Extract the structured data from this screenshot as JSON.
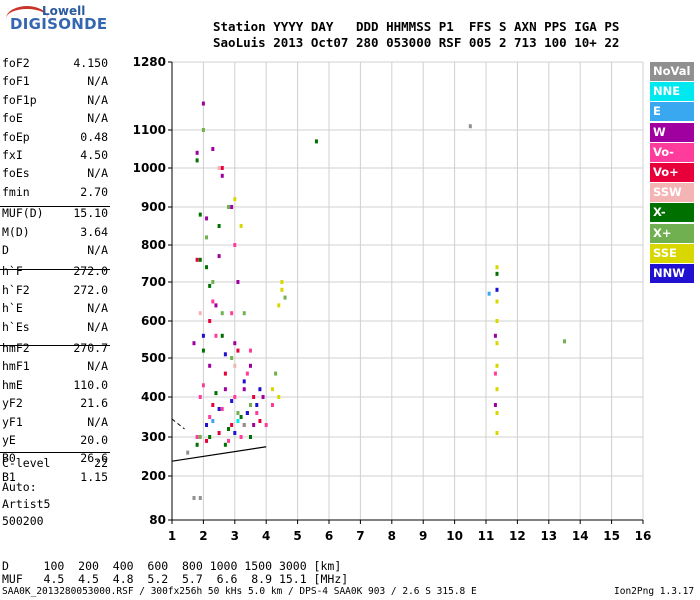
{
  "logo": {
    "top": "Lowell",
    "main": "DIGISONDE"
  },
  "header": {
    "line1": "Station YYYY DAY   DDD HHMMSS P1  FFS S AXN PPS IGA PS",
    "line2": "SaoLuis 2013 Oct07 280 053000 RSF 005 2 713 100 10+ 22"
  },
  "params": [
    {
      "name": "foF2",
      "value": "4.150"
    },
    {
      "name": "foF1",
      "value": "N/A"
    },
    {
      "name": "foF1p",
      "value": "N/A"
    },
    {
      "name": "foE",
      "value": "N/A"
    },
    {
      "name": "foEp",
      "value": "0.48"
    },
    {
      "name": "fxI",
      "value": "4.50"
    },
    {
      "name": "foEs",
      "value": "N/A"
    },
    {
      "name": "fmin",
      "value": "2.70"
    },
    {
      "name": "MUF(D)",
      "value": "15.10"
    },
    {
      "name": "M(D)",
      "value": "3.64"
    },
    {
      "name": "D",
      "value": "N/A"
    },
    {
      "name": "h`F",
      "value": "272.0"
    },
    {
      "name": "h`F2",
      "value": "272.0"
    },
    {
      "name": "h`E",
      "value": "N/A"
    },
    {
      "name": "h`Es",
      "value": "N/A"
    },
    {
      "name": "hmF2",
      "value": "270.7"
    },
    {
      "name": "hmF1",
      "value": "N/A"
    },
    {
      "name": "hmE",
      "value": "110.0"
    },
    {
      "name": "yF2",
      "value": "21.6"
    },
    {
      "name": "yF1",
      "value": "N/A"
    },
    {
      "name": "yE",
      "value": "20.0"
    },
    {
      "name": "B0",
      "value": "26.6"
    },
    {
      "name": "B1",
      "value": "1.15"
    }
  ],
  "clevel": {
    "name": "C-level",
    "value": "22"
  },
  "auto": [
    "Auto:",
    "Artist5",
    "500200"
  ],
  "legend": [
    {
      "label": "NoVal",
      "color": "#909090"
    },
    {
      "label": "NNE",
      "color": "#00e8f0"
    },
    {
      "label": "E",
      "color": "#3aa8f0"
    },
    {
      "label": "W",
      "color": "#a000a0"
    },
    {
      "label": "Vo-",
      "color": "#ff3c9c"
    },
    {
      "label": "Vo+",
      "color": "#e8003a"
    },
    {
      "label": "SSW",
      "color": "#f4b4b4"
    },
    {
      "label": "X-",
      "color": "#007000"
    },
    {
      "label": "X+",
      "color": "#70b050"
    },
    {
      "label": "SSE",
      "color": "#d8d800"
    },
    {
      "label": "NNW",
      "color": "#2010d0"
    }
  ],
  "muf_table": {
    "row1": "D     100  200  400  600  800 1000 1500 3000 [km]",
    "row2": "MUF   4.5  4.5  4.8  5.2  5.7  6.6  8.9 15.1 [MHz]"
  },
  "footer": {
    "left": "SAA0K_2013280053000.RSF / 300fx256h 50 kHs 5.0 km / DPS-4 SAA0K 903 / 2.6 S 315.8 E",
    "right": "Ion2Png 1.3.17"
  },
  "chart_data": {
    "type": "scatter",
    "x_ticks": [
      1,
      2,
      3,
      4,
      5,
      6,
      7,
      8,
      9,
      10,
      11,
      12,
      13,
      14,
      15,
      16
    ],
    "y_ticks": [
      80,
      200,
      300,
      400,
      500,
      600,
      700,
      800,
      900,
      1000,
      1100,
      1280
    ],
    "xlim": [
      1,
      16
    ],
    "ylim": [
      80,
      1280
    ],
    "grid": true,
    "legend_position": "right",
    "trace": [
      [
        1.0,
        238
      ],
      [
        4.0,
        275
      ]
    ],
    "trace2": [
      [
        1.0,
        345
      ],
      [
        1.4,
        320
      ]
    ],
    "series": [
      {
        "name": "X-",
        "points": [
          [
            1.9,
            760
          ],
          [
            2.2,
            690
          ],
          [
            2.6,
            560
          ],
          [
            1.8,
            280
          ],
          [
            2.2,
            300
          ],
          [
            2.8,
            320
          ],
          [
            3.2,
            350
          ],
          [
            2.4,
            410
          ],
          [
            2.0,
            520
          ],
          [
            2.5,
            850
          ],
          [
            1.9,
            880
          ],
          [
            2.7,
            280
          ],
          [
            3.5,
            300
          ],
          [
            11.35,
            722
          ],
          [
            5.6,
            1070
          ],
          [
            1.8,
            1020
          ],
          [
            2.1,
            740
          ]
        ]
      },
      {
        "name": "X+",
        "points": [
          [
            2.1,
            820
          ],
          [
            2.3,
            700
          ],
          [
            2.9,
            500
          ],
          [
            3.1,
            360
          ],
          [
            3.5,
            380
          ],
          [
            4.3,
            460
          ],
          [
            1.9,
            300
          ],
          [
            2.6,
            620
          ],
          [
            4.6,
            660
          ],
          [
            2.8,
            900
          ],
          [
            3.3,
            620
          ],
          [
            13.5,
            545
          ],
          [
            2.0,
            1100
          ]
        ]
      },
      {
        "name": "W",
        "points": [
          [
            2.0,
            1170
          ],
          [
            2.3,
            1050
          ],
          [
            2.6,
            980
          ],
          [
            2.9,
            900
          ],
          [
            2.4,
            640
          ],
          [
            3.0,
            540
          ],
          [
            3.3,
            420
          ],
          [
            3.6,
            330
          ],
          [
            1.7,
            540
          ],
          [
            2.2,
            480
          ],
          [
            2.7,
            420
          ],
          [
            3.9,
            400
          ],
          [
            2.5,
            770
          ],
          [
            3.1,
            700
          ],
          [
            11.3,
            560
          ],
          [
            11.3,
            380
          ],
          [
            1.8,
            1040
          ],
          [
            3.5,
            480
          ],
          [
            2.1,
            870
          ]
        ]
      },
      {
        "name": "Vo-",
        "points": [
          [
            2.2,
            350
          ],
          [
            2.6,
            370
          ],
          [
            3.0,
            400
          ],
          [
            3.3,
            330
          ],
          [
            3.7,
            360
          ],
          [
            4.0,
            330
          ],
          [
            2.0,
            430
          ],
          [
            2.4,
            560
          ],
          [
            2.9,
            620
          ],
          [
            3.5,
            520
          ],
          [
            1.8,
            300
          ],
          [
            2.8,
            290
          ],
          [
            3.2,
            300
          ],
          [
            4.2,
            380
          ],
          [
            2.3,
            650
          ],
          [
            3.0,
            800
          ],
          [
            3.4,
            460
          ],
          [
            1.9,
            400
          ],
          [
            11.3,
            460
          ]
        ]
      },
      {
        "name": "Vo+",
        "points": [
          [
            2.1,
            290
          ],
          [
            2.5,
            310
          ],
          [
            2.9,
            330
          ],
          [
            3.4,
            360
          ],
          [
            3.8,
            340
          ],
          [
            2.3,
            380
          ],
          [
            2.7,
            460
          ],
          [
            3.1,
            520
          ],
          [
            1.8,
            760
          ],
          [
            2.2,
            600
          ],
          [
            2.6,
            1000
          ],
          [
            3.6,
            400
          ]
        ]
      },
      {
        "name": "SSE",
        "points": [
          [
            11.35,
            310
          ],
          [
            11.35,
            360
          ],
          [
            11.35,
            420
          ],
          [
            11.35,
            480
          ],
          [
            11.35,
            540
          ],
          [
            11.35,
            600
          ],
          [
            11.35,
            650
          ],
          [
            4.5,
            680
          ],
          [
            4.4,
            640
          ],
          [
            4.5,
            700
          ],
          [
            3.2,
            850
          ],
          [
            3.0,
            920
          ],
          [
            4.2,
            420
          ],
          [
            4.4,
            400
          ],
          [
            11.35,
            740
          ]
        ]
      },
      {
        "name": "NNW",
        "points": [
          [
            2.5,
            370
          ],
          [
            2.9,
            390
          ],
          [
            3.3,
            440
          ],
          [
            3.7,
            380
          ],
          [
            2.1,
            330
          ],
          [
            3.0,
            310
          ],
          [
            3.4,
            360
          ],
          [
            2.7,
            510
          ],
          [
            2.0,
            560
          ],
          [
            11.35,
            680
          ],
          [
            3.8,
            420
          ]
        ]
      },
      {
        "name": "E",
        "points": [
          [
            11.1,
            670
          ],
          [
            2.3,
            340
          ]
        ]
      },
      {
        "name": "NNE",
        "points": [
          [
            3.1,
            340
          ]
        ]
      },
      {
        "name": "SSW",
        "points": [
          [
            2.5,
            1000
          ],
          [
            3.0,
            480
          ],
          [
            1.9,
            620
          ]
        ]
      },
      {
        "name": "NoVal",
        "points": [
          [
            1.5,
            260
          ],
          [
            1.7,
            140
          ],
          [
            1.9,
            140
          ],
          [
            10.5,
            1110
          ],
          [
            3.3,
            330
          ]
        ]
      }
    ]
  }
}
